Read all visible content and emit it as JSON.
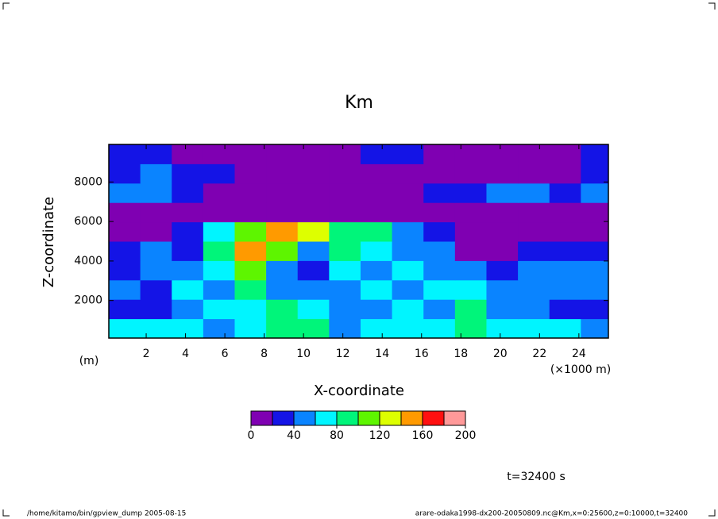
{
  "chart_data": {
    "type": "heatmap",
    "title": "Km",
    "xlabel": "X-coordinate",
    "ylabel": "Z-coordinate",
    "xunit": "(×1000 m)",
    "yunit": "(m)",
    "annotation": "t=32400 s",
    "footer_left": "/home/kitamo/bin/gpview_dump  2005-08-15",
    "footer_right": "arare-odaka1998-dx200-20050809.nc@Km,x=0:25600,z=0:10000,t=32400",
    "xlim": [
      0.1,
      25.5
    ],
    "ylim": [
      100,
      9900
    ],
    "xticks": [
      2,
      4,
      6,
      8,
      10,
      12,
      14,
      16,
      18,
      20,
      22,
      24
    ],
    "yticks": [
      2000,
      4000,
      6000,
      8000
    ],
    "x": [
      0.9,
      2.5,
      4.1,
      5.7,
      7.3,
      8.9,
      10.5,
      12.1,
      13.7,
      15.3,
      16.9,
      18.5,
      20.1,
      21.7,
      23.3,
      24.9
    ],
    "z": [
      590,
      1570,
      2550,
      3530,
      4510,
      5490,
      6470,
      7450,
      8430,
      9410
    ],
    "values": [
      [
        70,
        70,
        70,
        50,
        70,
        90,
        90,
        50,
        70,
        70,
        70,
        90,
        70,
        70,
        70,
        50
      ],
      [
        30,
        30,
        50,
        70,
        70,
        90,
        70,
        50,
        50,
        70,
        50,
        90,
        50,
        50,
        30,
        30
      ],
      [
        50,
        30,
        70,
        50,
        90,
        50,
        50,
        50,
        70,
        50,
        70,
        70,
        50,
        50,
        50,
        50
      ],
      [
        30,
        50,
        50,
        70,
        110,
        50,
        30,
        70,
        50,
        70,
        50,
        50,
        30,
        50,
        50,
        50
      ],
      [
        30,
        50,
        30,
        90,
        150,
        110,
        50,
        90,
        70,
        50,
        50,
        10,
        10,
        30,
        30,
        30
      ],
      [
        10,
        10,
        30,
        70,
        110,
        150,
        130,
        90,
        90,
        50,
        30,
        10,
        10,
        10,
        10,
        10
      ],
      [
        10,
        10,
        10,
        10,
        10,
        10,
        10,
        10,
        10,
        10,
        10,
        10,
        10,
        10,
        10,
        10
      ],
      [
        50,
        50,
        30,
        10,
        10,
        10,
        10,
        10,
        10,
        10,
        30,
        30,
        50,
        50,
        30,
        50
      ],
      [
        30,
        50,
        30,
        30,
        10,
        10,
        10,
        10,
        10,
        10,
        10,
        10,
        10,
        10,
        10,
        30
      ],
      [
        30,
        30,
        10,
        10,
        10,
        10,
        10,
        10,
        30,
        30,
        10,
        10,
        10,
        10,
        10,
        30
      ]
    ],
    "levels": [
      0,
      20,
      40,
      60,
      80,
      100,
      120,
      140,
      160,
      180,
      200
    ],
    "colors": [
      "#7f00b2",
      "#1414e6",
      "#0a84ff",
      "#00f5ff",
      "#00f57a",
      "#5ef500",
      "#ddff00",
      "#ff9a00",
      "#ff1010",
      "#ff9999"
    ],
    "colorbar_ticks": [
      0,
      40,
      80,
      120,
      160,
      200
    ]
  }
}
